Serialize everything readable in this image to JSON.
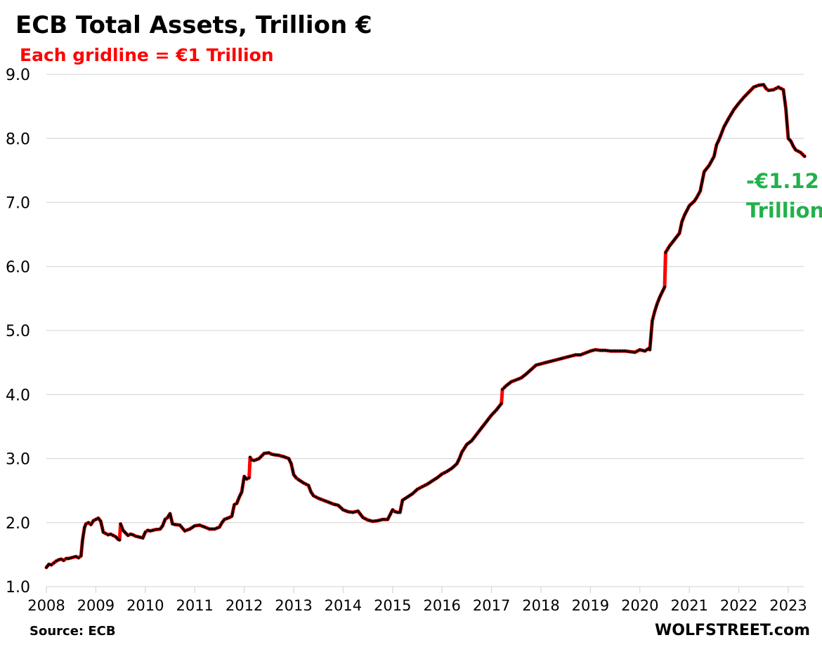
{
  "chart_data": {
    "type": "line",
    "title": "ECB Total Assets, Trillion €",
    "subtitle": "Each gridline = €1 Trillion",
    "xlabel": "",
    "ylabel": "",
    "xlim": [
      2008,
      2023.33
    ],
    "ylim": [
      1.0,
      9.0
    ],
    "grid": true,
    "legend": "none",
    "y_ticks": [
      "1.0",
      "2.0",
      "3.0",
      "4.0",
      "5.0",
      "6.0",
      "7.0",
      "8.0",
      "9.0"
    ],
    "x_ticks": [
      "2008",
      "2009",
      "2010",
      "2011",
      "2012",
      "2013",
      "2014",
      "2015",
      "2016",
      "2017",
      "2018",
      "2019",
      "2020",
      "2021",
      "2022",
      "2023"
    ],
    "annotation": {
      "line1": "-€1.12",
      "line2": "Trillion",
      "color": "#22B14C"
    },
    "source": "Source: ECB",
    "credit": "WOLFSTREET.com",
    "colors": {
      "line": "#FF0000",
      "markers": "#000000",
      "subtitle": "#FF0000",
      "grid": "#D9D9D9"
    },
    "series": [
      {
        "name": "ECB Total Assets",
        "x": [
          2008.0,
          2008.05,
          2008.1,
          2008.15,
          2008.2,
          2008.25,
          2008.3,
          2008.35,
          2008.4,
          2008.45,
          2008.5,
          2008.55,
          2008.6,
          2008.65,
          2008.7,
          2008.73,
          2008.77,
          2008.8,
          2008.85,
          2008.9,
          2008.95,
          2009.0,
          2009.05,
          2009.1,
          2009.15,
          2009.2,
          2009.25,
          2009.3,
          2009.35,
          2009.4,
          2009.45,
          2009.48,
          2009.5,
          2009.55,
          2009.6,
          2009.65,
          2009.7,
          2009.75,
          2009.8,
          2009.85,
          2009.9,
          2009.95,
          2010.0,
          2010.05,
          2010.1,
          2010.2,
          2010.3,
          2010.35,
          2010.4,
          2010.45,
          2010.5,
          2010.55,
          2010.6,
          2010.7,
          2010.8,
          2010.9,
          2011.0,
          2011.1,
          2011.2,
          2011.3,
          2011.4,
          2011.5,
          2011.55,
          2011.6,
          2011.7,
          2011.75,
          2011.8,
          2011.85,
          2011.9,
          2011.95,
          2012.0,
          2012.05,
          2012.1,
          2012.12,
          2012.15,
          2012.2,
          2012.3,
          2012.4,
          2012.5,
          2012.55,
          2012.6,
          2012.7,
          2012.8,
          2012.9,
          2012.95,
          2013.0,
          2013.05,
          2013.1,
          2013.2,
          2013.3,
          2013.35,
          2013.4,
          2013.5,
          2013.6,
          2013.7,
          2013.8,
          2013.9,
          2014.0,
          2014.1,
          2014.2,
          2014.3,
          2014.4,
          2014.5,
          2014.6,
          2014.7,
          2014.8,
          2014.9,
          2015.0,
          2015.05,
          2015.1,
          2015.15,
          2015.2,
          2015.3,
          2015.4,
          2015.5,
          2015.6,
          2015.7,
          2015.8,
          2015.9,
          2016.0,
          2016.1,
          2016.2,
          2016.3,
          2016.35,
          2016.4,
          2016.5,
          2016.6,
          2016.7,
          2016.8,
          2016.9,
          2017.0,
          2017.1,
          2017.2,
          2017.22,
          2017.3,
          2017.4,
          2017.5,
          2017.6,
          2017.7,
          2017.8,
          2017.9,
          2018.0,
          2018.1,
          2018.2,
          2018.3,
          2018.4,
          2018.5,
          2018.6,
          2018.7,
          2018.8,
          2018.9,
          2019.0,
          2019.1,
          2019.2,
          2019.3,
          2019.4,
          2019.5,
          2019.6,
          2019.7,
          2019.8,
          2019.9,
          2020.0,
          2020.1,
          2020.18,
          2020.2,
          2020.25,
          2020.3,
          2020.35,
          2020.4,
          2020.45,
          2020.5,
          2020.52,
          2020.6,
          2020.7,
          2020.8,
          2020.85,
          2020.9,
          2021.0,
          2021.1,
          2021.15,
          2021.2,
          2021.22,
          2021.3,
          2021.4,
          2021.5,
          2021.55,
          2021.6,
          2021.7,
          2021.8,
          2021.9,
          2022.0,
          2022.1,
          2022.2,
          2022.3,
          2022.4,
          2022.5,
          2022.55,
          2022.6,
          2022.7,
          2022.8,
          2022.85,
          2022.9,
          2022.95,
          2023.0,
          2023.05,
          2023.1,
          2023.15,
          2023.2,
          2023.25,
          2023.33
        ],
        "values": [
          1.3,
          1.35,
          1.34,
          1.37,
          1.4,
          1.42,
          1.43,
          1.41,
          1.44,
          1.44,
          1.45,
          1.46,
          1.47,
          1.45,
          1.48,
          1.72,
          1.92,
          1.98,
          2.0,
          1.97,
          2.03,
          2.05,
          2.07,
          2.02,
          1.85,
          1.83,
          1.81,
          1.82,
          1.8,
          1.78,
          1.74,
          1.73,
          1.98,
          1.88,
          1.84,
          1.8,
          1.82,
          1.81,
          1.79,
          1.78,
          1.77,
          1.76,
          1.85,
          1.88,
          1.87,
          1.89,
          1.9,
          1.95,
          2.05,
          2.08,
          2.14,
          1.98,
          1.97,
          1.96,
          1.87,
          1.9,
          1.95,
          1.96,
          1.93,
          1.9,
          1.9,
          1.93,
          2.0,
          2.05,
          2.08,
          2.1,
          2.28,
          2.3,
          2.4,
          2.48,
          2.72,
          2.68,
          2.7,
          3.02,
          2.98,
          2.97,
          3.0,
          3.08,
          3.09,
          3.07,
          3.06,
          3.05,
          3.03,
          3.0,
          2.92,
          2.75,
          2.7,
          2.67,
          2.62,
          2.58,
          2.48,
          2.42,
          2.38,
          2.35,
          2.32,
          2.29,
          2.27,
          2.2,
          2.17,
          2.16,
          2.18,
          2.08,
          2.04,
          2.02,
          2.03,
          2.05,
          2.05,
          2.2,
          2.17,
          2.16,
          2.16,
          2.35,
          2.4,
          2.45,
          2.52,
          2.56,
          2.6,
          2.65,
          2.7,
          2.76,
          2.8,
          2.85,
          2.92,
          3.0,
          3.1,
          3.22,
          3.28,
          3.38,
          3.48,
          3.58,
          3.68,
          3.76,
          3.86,
          4.08,
          4.14,
          4.2,
          4.23,
          4.26,
          4.32,
          4.39,
          4.46,
          4.48,
          4.5,
          4.52,
          4.54,
          4.56,
          4.58,
          4.6,
          4.62,
          4.62,
          4.65,
          4.68,
          4.7,
          4.69,
          4.69,
          4.68,
          4.68,
          4.68,
          4.68,
          4.67,
          4.66,
          4.7,
          4.68,
          4.72,
          4.7,
          5.15,
          5.3,
          5.42,
          5.52,
          5.6,
          5.68,
          6.22,
          6.32,
          6.42,
          6.52,
          6.7,
          6.8,
          6.95,
          7.02,
          7.08,
          7.15,
          7.18,
          7.48,
          7.58,
          7.72,
          7.9,
          7.98,
          8.18,
          8.32,
          8.45,
          8.55,
          8.64,
          8.72,
          8.8,
          8.83,
          8.84,
          8.78,
          8.75,
          8.76,
          8.8,
          8.78,
          8.76,
          8.47,
          8.0,
          7.96,
          7.88,
          7.82,
          7.8,
          7.78,
          7.72
        ]
      }
    ]
  }
}
